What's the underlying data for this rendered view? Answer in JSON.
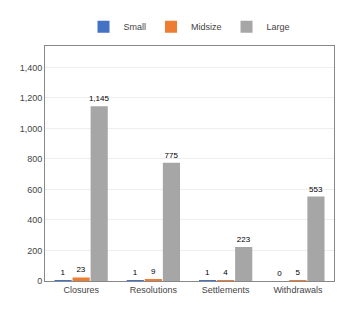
{
  "chart_data": {
    "type": "bar",
    "categories": [
      "Closures",
      "Resolutions",
      "Settlements",
      "Withdrawals"
    ],
    "series": [
      {
        "name": "Small",
        "color": "#4472c4",
        "values": [
          1,
          1,
          1,
          0
        ]
      },
      {
        "name": "Midsize",
        "color": "#ed7d31",
        "values": [
          23,
          9,
          4,
          5
        ]
      },
      {
        "name": "Large",
        "color": "#a6a6a6",
        "values": [
          1145,
          775,
          223,
          553
        ],
        "value_labels": [
          "1,145",
          "775",
          "223",
          "553"
        ]
      }
    ],
    "ylim": [
      0,
      1540
    ],
    "yticks": [
      0,
      200,
      400,
      600,
      800,
      {
        "value": 1000,
        "label": "1,000"
      },
      {
        "value": 1200,
        "label": "1,200"
      },
      {
        "value": 1400,
        "label": "1,400"
      }
    ],
    "grid": true,
    "legend": "top",
    "data_labels": true
  }
}
